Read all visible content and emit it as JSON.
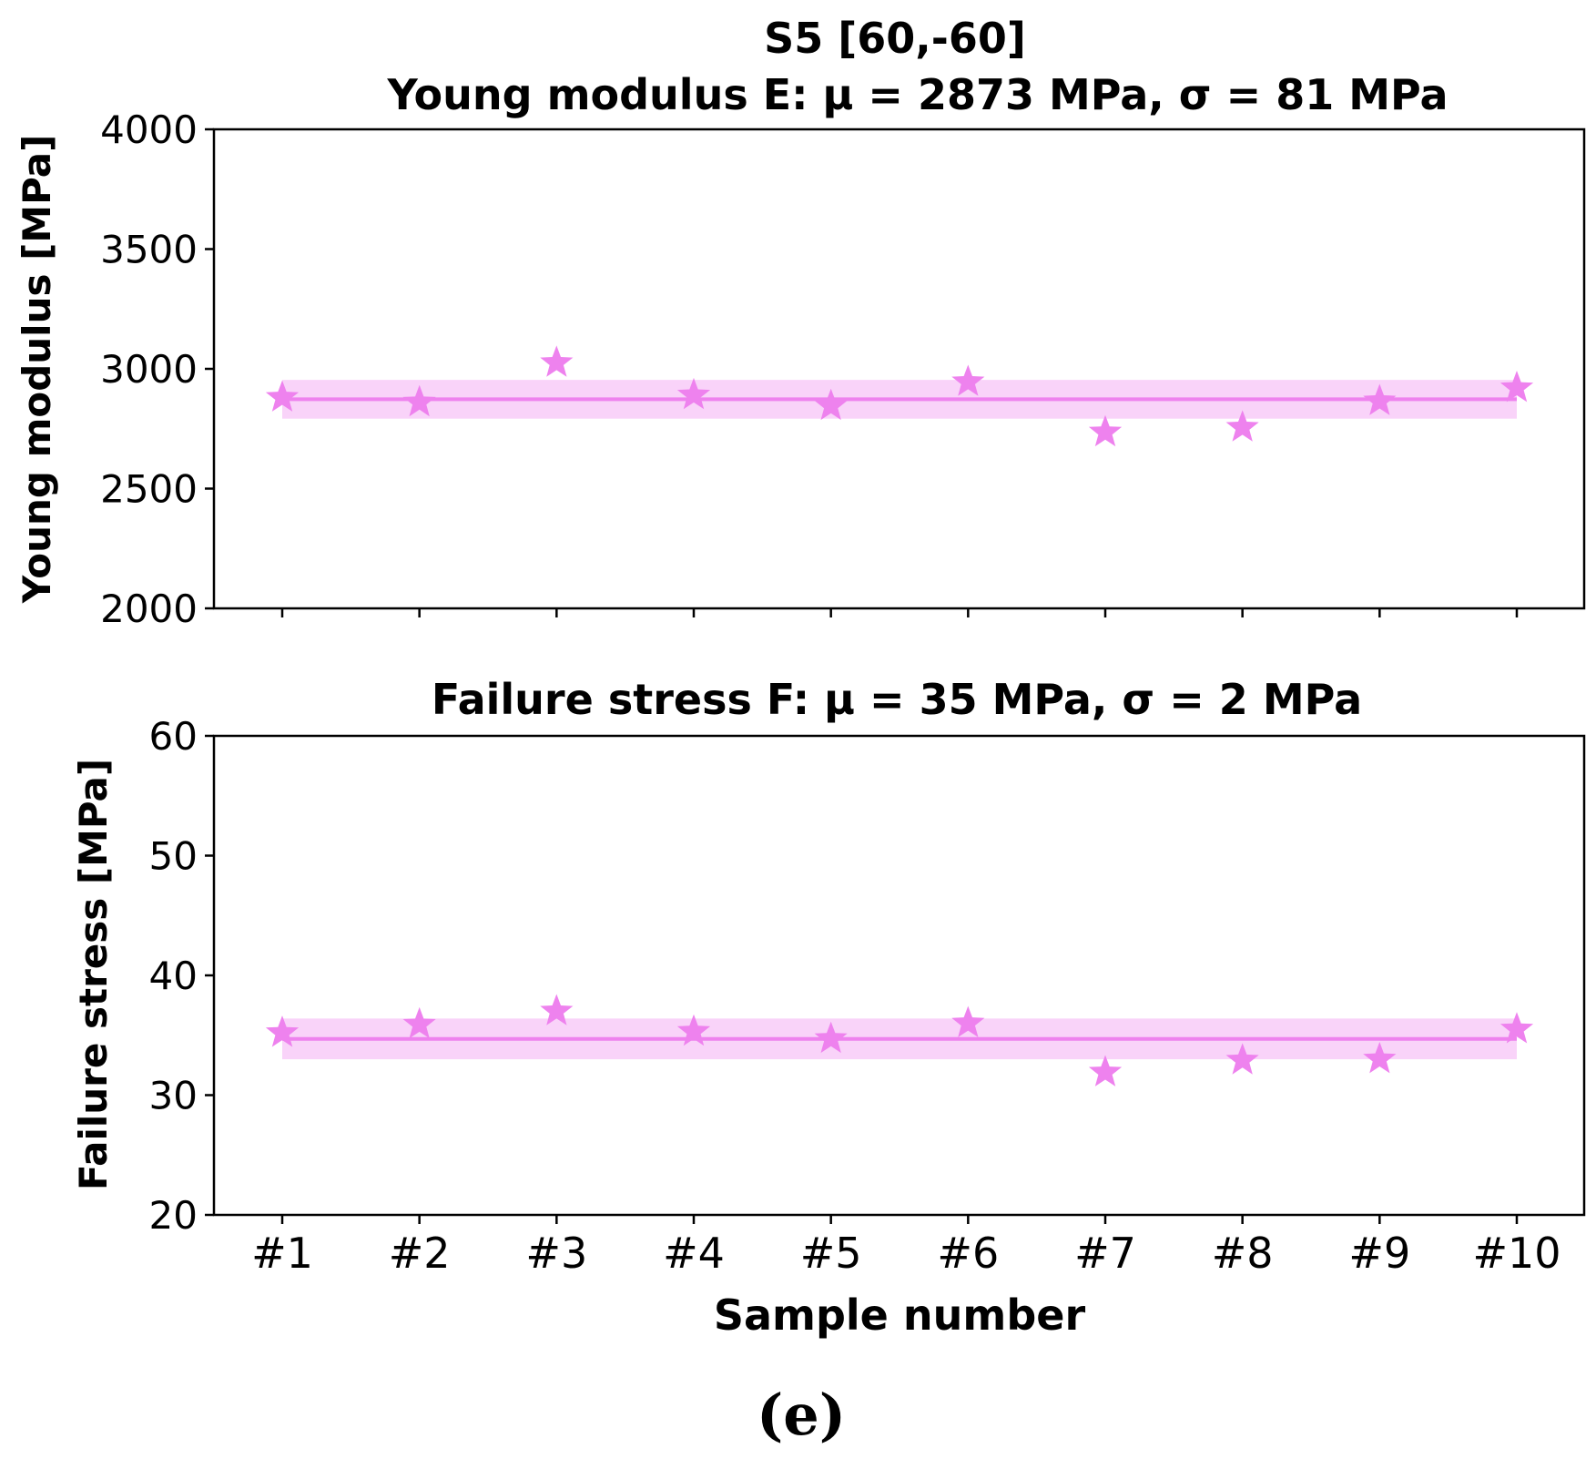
{
  "figure": {
    "suptitle": "S5 [60,-60]",
    "caption": "(e)"
  },
  "chart_data": [
    {
      "type": "scatter",
      "title": "Young modulus E:  μ = 2873 MPa, σ = 81 MPa",
      "xlabel": "",
      "ylabel": "Young modulus [MPa]",
      "categories": [
        "#1",
        "#2",
        "#3",
        "#4",
        "#5",
        "#6",
        "#7",
        "#8",
        "#9",
        "#10"
      ],
      "values": [
        2880,
        2860,
        3025,
        2890,
        2845,
        2945,
        2735,
        2755,
        2865,
        2920
      ],
      "mean": 2873,
      "std": 81,
      "ylim": [
        2000,
        4000
      ],
      "yticks": [
        "2000",
        "2500",
        "3000",
        "3500",
        "4000"
      ],
      "color": "#ee82ee"
    },
    {
      "type": "scatter",
      "title": "Failure stress F:  μ = 35 MPa, σ = 2 MPa",
      "xlabel": "Sample number",
      "ylabel": "Failure stress [MPa]",
      "categories": [
        "#1",
        "#2",
        "#3",
        "#4",
        "#5",
        "#6",
        "#7",
        "#8",
        "#9",
        "#10"
      ],
      "values": [
        35.2,
        35.9,
        37.0,
        35.3,
        34.7,
        36.0,
        31.9,
        32.9,
        33.0,
        35.5
      ],
      "mean": 34.7,
      "std": 1.7,
      "ylim": [
        20,
        60
      ],
      "yticks": [
        "20",
        "30",
        "40",
        "50",
        "60"
      ],
      "color": "#ee82ee"
    }
  ]
}
